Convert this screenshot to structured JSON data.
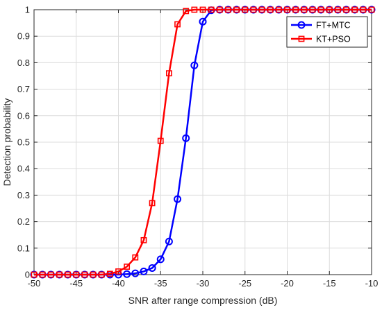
{
  "chart_data": {
    "type": "line",
    "title": "",
    "xlabel": "SNR after range compression (dB)",
    "ylabel": "Detection probability",
    "xlim": [
      -50,
      -10
    ],
    "ylim": [
      0,
      1
    ],
    "xticks": [
      -50,
      -45,
      -40,
      -35,
      -30,
      -25,
      -20,
      -15,
      -10
    ],
    "yticks": [
      0,
      0.1,
      0.2,
      0.3,
      0.4,
      0.5,
      0.6,
      0.7,
      0.8,
      0.9,
      1
    ],
    "xtick_labels": [
      "-50",
      "-45",
      "-40",
      "-35",
      "-30",
      "-25",
      "-20",
      "-15",
      "-10"
    ],
    "ytick_labels": [
      "0",
      "0.1",
      "0.2",
      "0.3",
      "0.4",
      "0.5",
      "0.6",
      "0.7",
      "0.8",
      "0.9",
      "1"
    ],
    "grid": true,
    "legend_position": "top-right",
    "series": [
      {
        "name": "FT+MTC",
        "color": "#0000ff",
        "marker": "circle",
        "x": [
          -50,
          -49,
          -48,
          -47,
          -46,
          -45,
          -44,
          -43,
          -42,
          -41,
          -40,
          -39,
          -38,
          -37,
          -36,
          -35,
          -34,
          -33,
          -32,
          -31,
          -30,
          -29,
          -28,
          -27,
          -26,
          -25,
          -24,
          -23,
          -22,
          -21,
          -20,
          -19,
          -18,
          -17,
          -16,
          -15,
          -14,
          -13,
          -12,
          -11,
          -10
        ],
        "y": [
          0,
          0,
          0,
          0,
          0,
          0,
          0,
          0,
          0,
          0,
          0,
          0.002,
          0.005,
          0.012,
          0.025,
          0.058,
          0.125,
          0.285,
          0.515,
          0.79,
          0.955,
          0.998,
          1,
          1,
          1,
          1,
          1,
          1,
          1,
          1,
          1,
          1,
          1,
          1,
          1,
          1,
          1,
          1,
          1,
          1,
          1
        ]
      },
      {
        "name": "KT+PSO",
        "color": "#ff0000",
        "marker": "square",
        "x": [
          -50,
          -49,
          -48,
          -47,
          -46,
          -45,
          -44,
          -43,
          -42,
          -41,
          -40,
          -39,
          -38,
          -37,
          -36,
          -35,
          -34,
          -33,
          -32,
          -31,
          -30,
          -29,
          -28,
          -27,
          -26,
          -25,
          -24,
          -23,
          -22,
          -21,
          -20,
          -19,
          -18,
          -17,
          -16,
          -15,
          -14,
          -13,
          -12,
          -11,
          -10
        ],
        "y": [
          0,
          0,
          0,
          0,
          0,
          0,
          0,
          0,
          0,
          0.003,
          0.012,
          0.03,
          0.065,
          0.13,
          0.27,
          0.505,
          0.76,
          0.945,
          0.995,
          1,
          1,
          1,
          1,
          1,
          1,
          1,
          1,
          1,
          1,
          1,
          1,
          1,
          1,
          1,
          1,
          1,
          1,
          1,
          1,
          1,
          1
        ]
      }
    ]
  }
}
